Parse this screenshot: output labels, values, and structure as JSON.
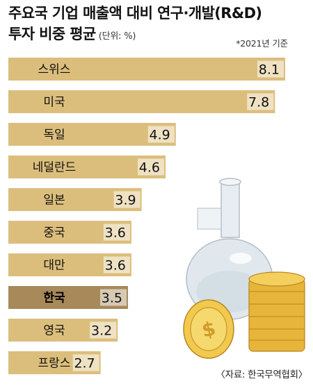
{
  "header": {
    "title_line1": "주요국 기업 매출액 대비 연구·개발(R&D)",
    "title_line2": "투자 비중 평균",
    "unit": "(단위: %)",
    "note": "*2021년 기준"
  },
  "footer": {
    "source": "〈자료: 한국무역협회〉"
  },
  "colors": {
    "bar": "#dcbe7c",
    "highlight_bar": "#a7895a",
    "label_bg": "#ffffff",
    "text": "#111111"
  },
  "chart_data": {
    "type": "bar",
    "orientation": "horizontal",
    "title": "주요국 기업 매출액 대비 연구·개발(R&D) 투자 비중 평균",
    "unit": "%",
    "categories": [
      "스위스",
      "미국",
      "독일",
      "네덜란드",
      "일본",
      "중국",
      "대만",
      "한국",
      "영국",
      "프랑스"
    ],
    "values": [
      8.1,
      7.8,
      4.9,
      4.6,
      3.9,
      3.6,
      3.6,
      3.5,
      3.2,
      2.7
    ],
    "highlight": "한국",
    "xlim": [
      0,
      8.1
    ],
    "grid": false,
    "legend": "none"
  }
}
